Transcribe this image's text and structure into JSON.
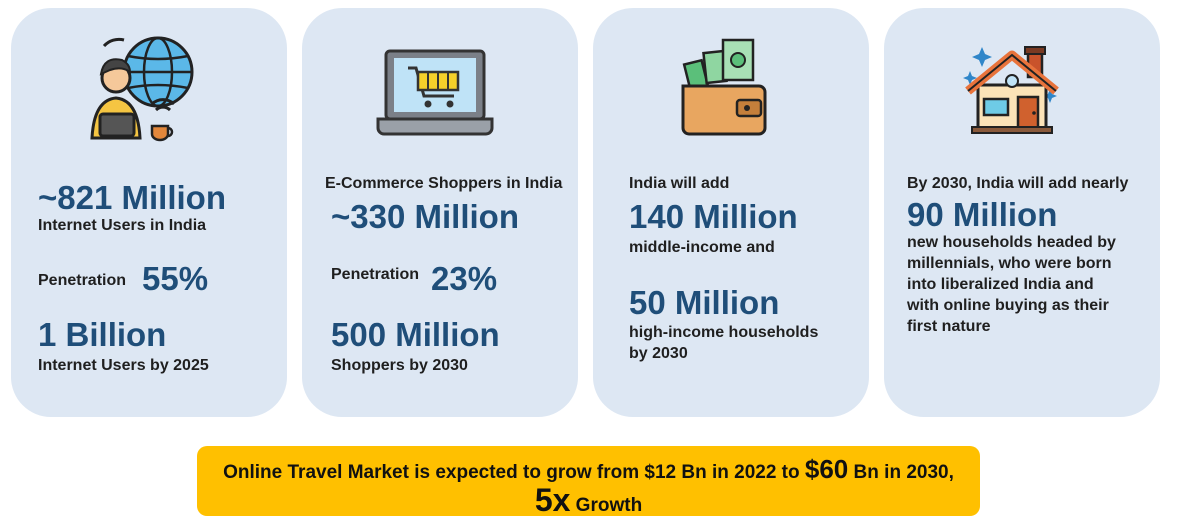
{
  "cards": [
    {
      "icon": "person-laptop-globe-icon",
      "line1_value": "~821 Million",
      "line1_label": "Internet Users in India",
      "penetration_label": "Penetration",
      "penetration_value": "55%",
      "line2_value": "1 Billion",
      "line2_label": "Internet Users by 2025"
    },
    {
      "icon": "laptop-shopping-cart-icon",
      "header": "E-Commerce Shoppers in India",
      "line1_value": "~330 Million",
      "penetration_label": "Penetration",
      "penetration_value": "23%",
      "line2_value": "500 Million",
      "line2_label": "Shoppers by 2030"
    },
    {
      "icon": "wallet-cash-icon",
      "header": "India will add",
      "line1_value": "140 Million",
      "line1_label": "middle-income and",
      "line2_value": "50 Million",
      "line2_label_a": "high-income households",
      "line2_label_b": "by 2030"
    },
    {
      "icon": "house-icon",
      "header": "By 2030, India will add nearly",
      "line1_value": "90 Million",
      "desc": [
        "new households headed by",
        "millennials, who were born",
        "into liberalized India and",
        "with online buying as their",
        "first nature"
      ]
    }
  ],
  "banner": {
    "text_a": "Online Travel Market is expected to grow from $12 Bn in 2022 to ",
    "highlight": "$60",
    "text_b": " Bn in 2030,",
    "multiplier": "5x",
    "growth": " Growth"
  }
}
